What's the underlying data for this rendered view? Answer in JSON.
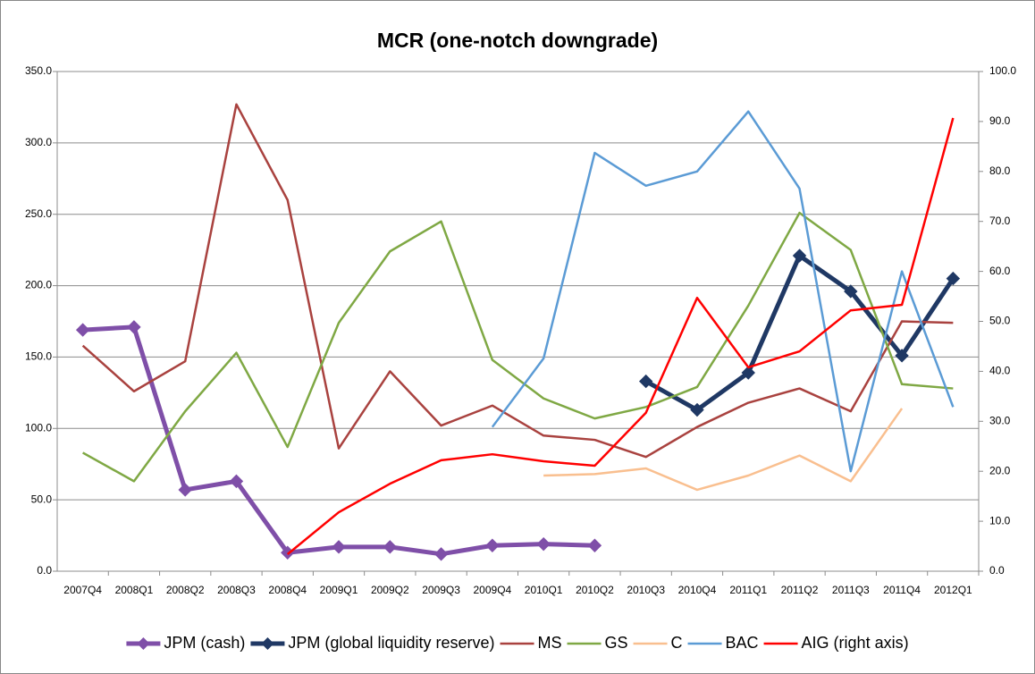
{
  "chart_data": {
    "type": "line",
    "title": "MCR (one-notch downgrade)",
    "categories": [
      "2007Q4",
      "2008Q1",
      "2008Q2",
      "2008Q3",
      "2008Q4",
      "2009Q1",
      "2009Q2",
      "2009Q3",
      "2009Q4",
      "2010Q1",
      "2010Q2",
      "2010Q3",
      "2010Q4",
      "2011Q1",
      "2011Q2",
      "2011Q3",
      "2011Q4",
      "2012Q1"
    ],
    "series": [
      {
        "name": "JPM (cash)",
        "color": "#7f4fa8",
        "marker": "diamond",
        "values": [
          169,
          171,
          57,
          63,
          13,
          17,
          17,
          12,
          18,
          19,
          18,
          null,
          null,
          null,
          null,
          null,
          null,
          null
        ]
      },
      {
        "name": "JPM (global liquidity reserve)",
        "color": "#1f3864",
        "marker": "diamond",
        "values": [
          null,
          null,
          null,
          null,
          null,
          null,
          null,
          null,
          null,
          null,
          null,
          133,
          113,
          139,
          221,
          196,
          151,
          205
        ]
      },
      {
        "name": "MS",
        "color": "#a9423f",
        "values": [
          158,
          126,
          147,
          327,
          260,
          86,
          140,
          102,
          116,
          95,
          92,
          80,
          101,
          118,
          128,
          112,
          175,
          174
        ]
      },
      {
        "name": "GS",
        "color": "#7fa844",
        "values": [
          83,
          63,
          112,
          153,
          87,
          174,
          224,
          245,
          148,
          121,
          107,
          115,
          129,
          186,
          251,
          225,
          131,
          128
        ]
      },
      {
        "name": "C",
        "color": "#f9bf8f",
        "values": [
          null,
          null,
          null,
          null,
          null,
          null,
          null,
          null,
          null,
          67,
          68,
          72,
          57,
          67,
          81,
          63,
          114,
          null
        ]
      },
      {
        "name": "BAC",
        "color": "#5b9bd5",
        "values": [
          null,
          null,
          null,
          null,
          null,
          null,
          null,
          null,
          101,
          149,
          293,
          270,
          280,
          322,
          268,
          70,
          210,
          115
        ]
      },
      {
        "name": "AIG (right axis)",
        "color": "#ff0000",
        "axis": "y2",
        "values": [
          null,
          null,
          null,
          null,
          3.4,
          11.8,
          17.5,
          22.2,
          23.4,
          22,
          21.1,
          31.7,
          54.7,
          40.8,
          44,
          52.2,
          53.3,
          90.7
        ]
      }
    ],
    "ylim": [
      0,
      350
    ],
    "yticks": [
      {
        "value": 0,
        "label": "0.0"
      },
      {
        "value": 50,
        "label": "50.0"
      },
      {
        "value": 100,
        "label": "100.0"
      },
      {
        "value": 150,
        "label": "150.0"
      },
      {
        "value": 200,
        "label": "200.0"
      },
      {
        "value": 250,
        "label": "250.0"
      },
      {
        "value": 300,
        "label": "300.0"
      },
      {
        "value": 350,
        "label": "350.0"
      }
    ],
    "y2lim": [
      0,
      100
    ],
    "y2ticks": [
      {
        "value": 0,
        "label": "0.0"
      },
      {
        "value": 10,
        "label": "10.0"
      },
      {
        "value": 20,
        "label": "20.0"
      },
      {
        "value": 30,
        "label": "30.0"
      },
      {
        "value": 40,
        "label": "40.0"
      },
      {
        "value": 50,
        "label": "50.0"
      },
      {
        "value": 60,
        "label": "60.0"
      },
      {
        "value": 70,
        "label": "70.0"
      },
      {
        "value": 80,
        "label": "80.0"
      },
      {
        "value": 90,
        "label": "90.0"
      },
      {
        "value": 100,
        "label": "100.0"
      }
    ],
    "grid": true,
    "legend": "bottom"
  }
}
